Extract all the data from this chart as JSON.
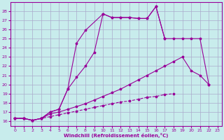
{
  "xlabel": "Windchill (Refroidissement éolien,°C)",
  "background_color": "#c8ecec",
  "line_color": "#990099",
  "grid_color": "#aaaacc",
  "xlim": [
    -0.5,
    23.5
  ],
  "ylim": [
    15.5,
    29.0
  ],
  "xticks": [
    0,
    1,
    2,
    3,
    4,
    5,
    6,
    7,
    8,
    9,
    10,
    11,
    12,
    13,
    14,
    15,
    16,
    17,
    18,
    19,
    20,
    21,
    22,
    23
  ],
  "yticks": [
    16,
    17,
    18,
    19,
    20,
    21,
    22,
    23,
    24,
    25,
    26,
    27,
    28
  ],
  "line1_x": [
    0,
    1,
    2,
    3,
    4,
    5,
    6,
    7,
    8,
    9,
    10,
    11,
    12,
    13,
    14,
    15,
    16,
    17,
    18
  ],
  "line1_y": [
    16.3,
    16.3,
    16.1,
    16.3,
    16.5,
    16.7,
    16.9,
    17.1,
    17.3,
    17.5,
    17.7,
    17.9,
    18.1,
    18.2,
    18.4,
    18.6,
    18.7,
    18.9,
    19.0
  ],
  "line2_x": [
    0,
    1,
    2,
    3,
    4,
    5,
    6,
    7,
    8,
    9,
    10,
    11,
    12,
    13,
    14,
    15,
    16,
    17,
    18,
    19,
    20,
    21,
    22
  ],
  "line2_y": [
    16.3,
    16.3,
    16.1,
    16.3,
    16.8,
    17.0,
    17.3,
    17.6,
    17.9,
    18.3,
    18.7,
    19.1,
    19.5,
    20.0,
    20.5,
    21.0,
    21.5,
    22.0,
    22.5,
    23.0,
    21.5,
    21.0,
    20.0
  ],
  "line3_x": [
    0,
    1,
    2,
    3,
    4,
    5,
    6,
    7,
    8,
    9,
    10,
    11,
    12,
    13,
    14,
    15,
    16,
    17,
    18,
    19,
    20,
    21,
    22
  ],
  "line3_y": [
    16.3,
    16.3,
    16.1,
    16.3,
    17.0,
    17.3,
    19.5,
    20.8,
    22.0,
    23.5,
    27.7,
    27.3,
    27.3,
    27.3,
    27.2,
    27.2,
    28.5,
    25.0,
    25.0,
    25.0,
    25.0,
    25.0,
    20.0
  ],
  "line4_x": [
    0,
    1,
    2,
    3,
    4,
    5,
    6,
    7,
    8,
    10,
    11,
    12,
    13,
    14,
    15,
    16,
    17
  ],
  "line4_y": [
    16.3,
    16.3,
    16.1,
    16.3,
    17.0,
    17.3,
    19.5,
    24.5,
    25.9,
    27.7,
    27.3,
    27.3,
    27.3,
    27.2,
    27.2,
    28.5,
    25.0
  ]
}
